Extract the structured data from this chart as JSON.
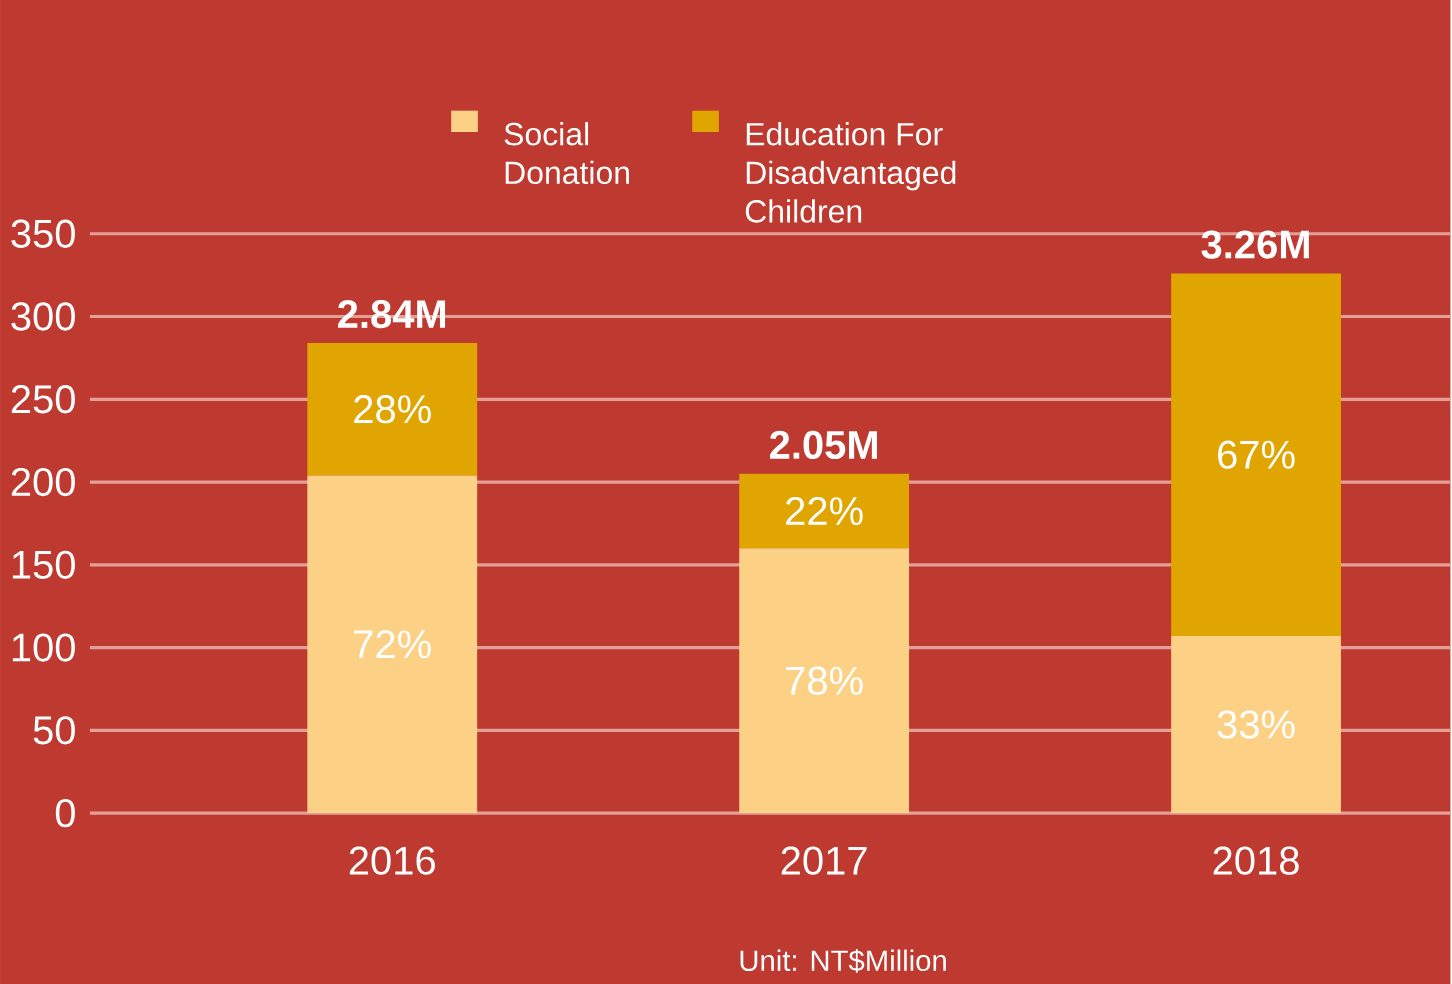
{
  "chart_data": {
    "type": "bar",
    "stacked": true,
    "categories": [
      "2016",
      "2017",
      "2018"
    ],
    "series": [
      {
        "name": "Social Donation",
        "color": "#fdd185",
        "values": [
          204,
          160,
          107
        ]
      },
      {
        "name": "Education For Disadvantaged Children",
        "color": "#e0a500",
        "values": [
          80,
          45,
          219
        ]
      }
    ],
    "ylim": [
      0,
      350
    ],
    "yticks": [
      0,
      50,
      100,
      150,
      200,
      250,
      300,
      350
    ],
    "grid": "y",
    "legend": "top",
    "annotations": [
      "72%",
      "78%",
      "33%",
      "28%",
      "22%",
      "67%",
      {
        "text": "**2.84M**",
        "x": "2016",
        "y": 284
      },
      {
        "text": "**2.05M**",
        "x": "2017",
        "y": 205
      },
      {
        "text": "**3.26M**",
        "x": "2018",
        "y": 326
      },
      "Unit: NT$Million"
    ]
  }
}
